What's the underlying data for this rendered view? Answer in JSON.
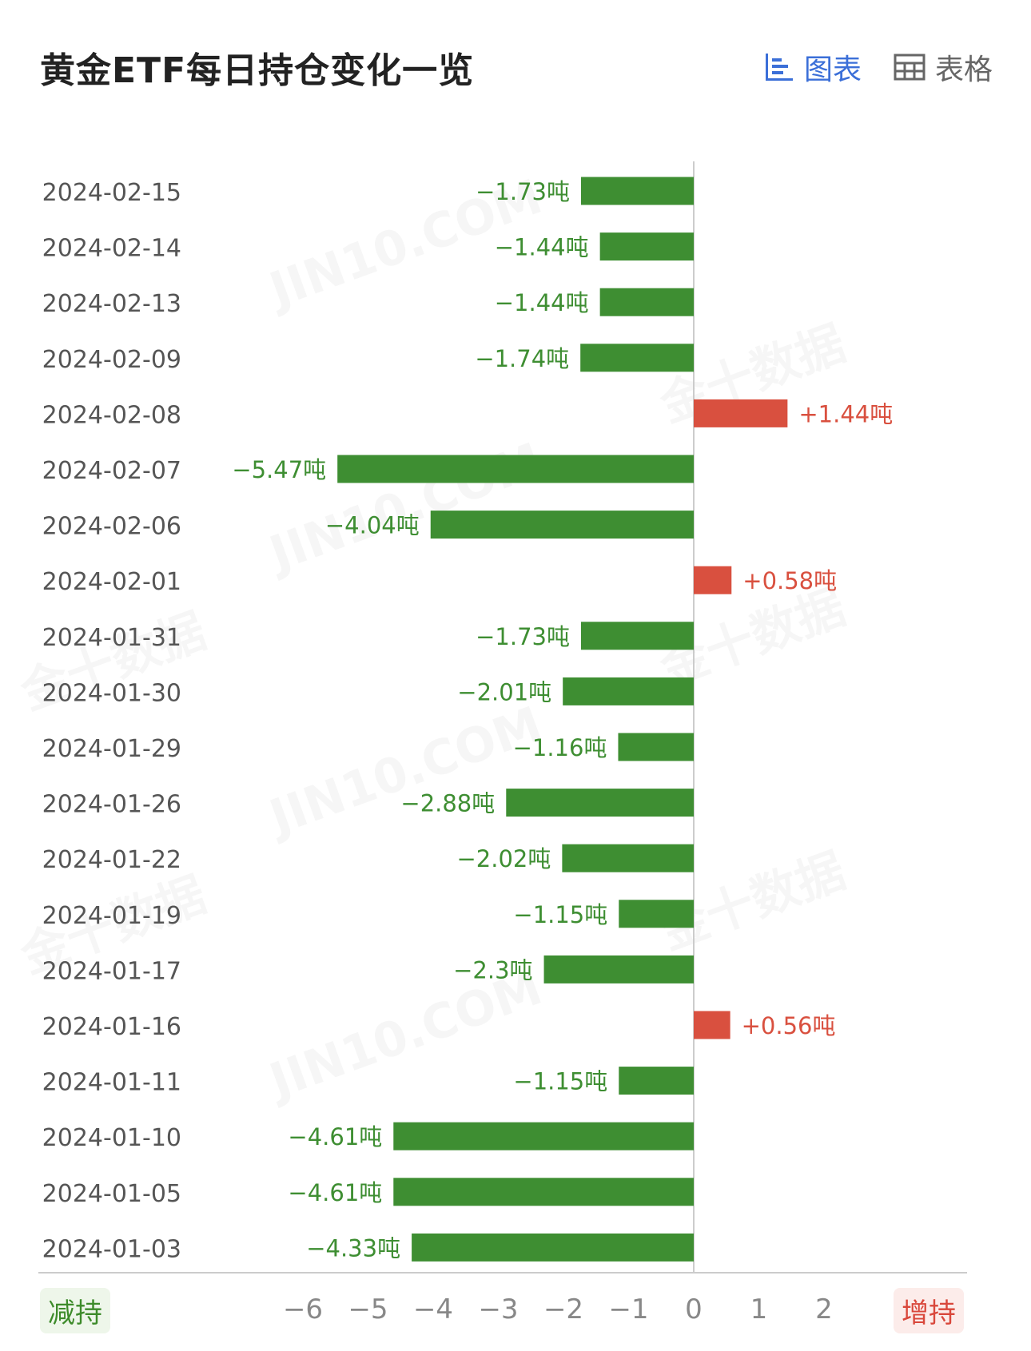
{
  "title": "黄金ETF每日持仓变化一览",
  "tabs": [
    {
      "label": "图表",
      "icon": "bar-chart-icon",
      "active": true
    },
    {
      "label": "表格",
      "icon": "table-icon",
      "active": false
    }
  ],
  "watermarks": [
    "金十数据",
    "JIN10.COM"
  ],
  "legend": {
    "decrease_label": "减持",
    "increase_label": "增持"
  },
  "colors": {
    "negative": "#3e8e32",
    "positive": "#d9503f",
    "axis": "#cccccc",
    "tab_active": "#3b6fd8"
  },
  "chart_data": {
    "type": "bar",
    "orientation": "horizontal",
    "unit": "吨",
    "categories": [
      "2024-02-15",
      "2024-02-14",
      "2024-02-13",
      "2024-02-09",
      "2024-02-08",
      "2024-02-07",
      "2024-02-06",
      "2024-02-01",
      "2024-01-31",
      "2024-01-30",
      "2024-01-29",
      "2024-01-26",
      "2024-01-22",
      "2024-01-19",
      "2024-01-17",
      "2024-01-16",
      "2024-01-11",
      "2024-01-10",
      "2024-01-05",
      "2024-01-03"
    ],
    "values": [
      -1.73,
      -1.44,
      -1.44,
      -1.74,
      1.44,
      -5.47,
      -4.04,
      0.58,
      -1.73,
      -2.01,
      -1.16,
      -2.88,
      -2.02,
      -1.15,
      -2.3,
      0.56,
      -1.15,
      -4.61,
      -4.61,
      -4.33
    ],
    "data_labels": [
      "−1.73吨",
      "−1.44吨",
      "−1.44吨",
      "−1.74吨",
      "+1.44吨",
      "−5.47吨",
      "−4.04吨",
      "+0.58吨",
      "−1.73吨",
      "−2.01吨",
      "−1.16吨",
      "−2.88吨",
      "−2.02吨",
      "−1.15吨",
      "−2.3吨",
      "+0.56吨",
      "−1.15吨",
      "−4.61吨",
      "−4.61吨",
      "−4.33吨"
    ],
    "xticks": [
      -6,
      -5,
      -4,
      -3,
      -2,
      -1,
      0,
      1,
      2
    ],
    "xtick_labels": [
      "−6",
      "−5",
      "−4",
      "−3",
      "−2",
      "−1",
      "0",
      "1",
      "2"
    ],
    "xlim": [
      -6.5,
      3
    ],
    "grid": false
  }
}
